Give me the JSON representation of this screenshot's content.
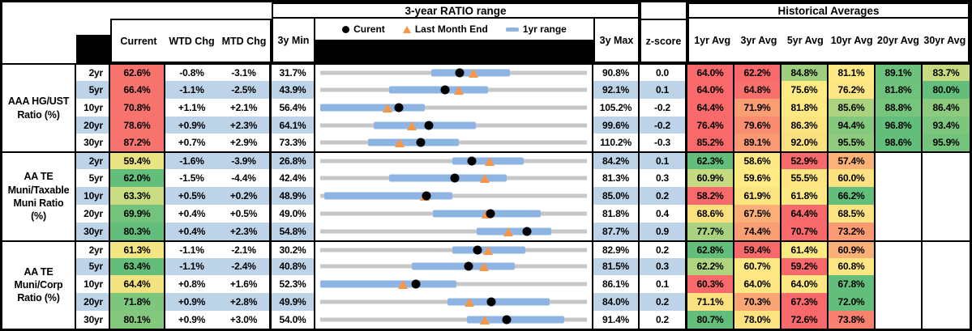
{
  "chart_data": {
    "type": "table",
    "title": "3-year RATIO range",
    "titles": {
      "range": "3-year RATIO range",
      "hist": "Historical Averages"
    },
    "legend": {
      "current": "Curent",
      "last_month": "Last Month End",
      "range_1yr": "1yr range"
    },
    "columns": {
      "current": "Current",
      "wtd": "WTD Chg",
      "mtd": "MTD Chg",
      "min": "3y Min",
      "max": "3y Max",
      "z": "z-score",
      "avgs": [
        "1yr Avg",
        "3yr Avg",
        "5yr Avg",
        "10yr Avg",
        "20yr Avg",
        "30yr Avg"
      ]
    },
    "colors": {
      "stripe": "#BDD3E8",
      "bar_1yr": "#8DB4E2",
      "track": "#C7C7C7",
      "dot": "#000000",
      "triangle": "#F79646",
      "scale_red": "#F8696B",
      "scale_yellow": "#FFEB84",
      "scale_green": "#63BE7B"
    },
    "groups": [
      {
        "label_lines": [
          "AAA HG/UST",
          "Ratio (%)"
        ],
        "rows": [
          {
            "tenor": "2yr",
            "current": {
              "text": "62.6%",
              "color": "#F7736D"
            },
            "wtd": "-0.8%",
            "mtd": "-3.1%",
            "min": "31.7%",
            "max": "90.8%",
            "z": "0.0",
            "bullet": {
              "lo": 31.7,
              "hi": 90.8,
              "bar_lo": 56.3,
              "bar_hi": 73.7,
              "dot": 62.6,
              "tri": 65.7
            },
            "avgs": [
              {
                "text": "64.0%",
                "color": "#F8696B"
              },
              {
                "text": "62.2%",
                "color": "#F8696B"
              },
              {
                "text": "84.8%",
                "color": "#9FCF7E"
              },
              {
                "text": "81.1%",
                "color": "#FFE984"
              },
              {
                "text": "89.1%",
                "color": "#6CC17C"
              },
              {
                "text": "83.7%",
                "color": "#C6DB81"
              }
            ]
          },
          {
            "tenor": "5yr",
            "current": {
              "text": "66.4%",
              "color": "#F7736D"
            },
            "wtd": "-1.1%",
            "mtd": "-2.5%",
            "min": "43.9%",
            "max": "92.1%",
            "z": "0.1",
            "bullet": {
              "lo": 43.9,
              "hi": 92.1,
              "bar_lo": 56.3,
              "bar_hi": 74.3,
              "dot": 66.4,
              "tri": 68.9
            },
            "avgs": [
              {
                "text": "64.0%",
                "color": "#F8696B"
              },
              {
                "text": "64.8%",
                "color": "#F8706C"
              },
              {
                "text": "75.6%",
                "color": "#FFEB84"
              },
              {
                "text": "76.2%",
                "color": "#FDE683"
              },
              {
                "text": "81.8%",
                "color": "#6FC27C"
              },
              {
                "text": "80.0%",
                "color": "#63BE7B"
              }
            ]
          },
          {
            "tenor": "10yr",
            "current": {
              "text": "70.8%",
              "color": "#F7736D"
            },
            "wtd": "+1.1%",
            "mtd": "+2.1%",
            "min": "56.4%",
            "max": "105.2%",
            "z": "-0.2",
            "bullet": {
              "lo": 56.4,
              "hi": 105.2,
              "bar_lo": 56.4,
              "bar_hi": 75.5,
              "dot": 70.8,
              "tri": 68.7
            },
            "avgs": [
              {
                "text": "64.4%",
                "color": "#F8696B"
              },
              {
                "text": "71.9%",
                "color": "#FA9E73"
              },
              {
                "text": "81.8%",
                "color": "#FEE982"
              },
              {
                "text": "85.6%",
                "color": "#ABD37F"
              },
              {
                "text": "88.8%",
                "color": "#77C47D"
              },
              {
                "text": "86.4%",
                "color": "#8CCA7E"
              }
            ]
          },
          {
            "tenor": "20yr",
            "current": {
              "text": "78.6%",
              "color": "#F7736D"
            },
            "wtd": "+0.9%",
            "mtd": "+2.3%",
            "min": "64.1%",
            "max": "99.6%",
            "z": "-0.2",
            "bullet": {
              "lo": 64.1,
              "hi": 99.6,
              "bar_lo": 71.2,
              "bar_hi": 84.8,
              "dot": 78.6,
              "tri": 76.3
            },
            "avgs": [
              {
                "text": "76.4%",
                "color": "#F8696B"
              },
              {
                "text": "79.6%",
                "color": "#FA8D70"
              },
              {
                "text": "86.3%",
                "color": "#FBE480"
              },
              {
                "text": "94.4%",
                "color": "#84C87D"
              },
              {
                "text": "96.8%",
                "color": "#63BE7B"
              },
              {
                "text": "93.4%",
                "color": "#7CC67D"
              }
            ]
          },
          {
            "tenor": "30yr",
            "current": {
              "text": "87.2%",
              "color": "#F7736D"
            },
            "wtd": "+0.7%",
            "mtd": "+2.9%",
            "min": "73.3%",
            "max": "110.2%",
            "z": "-0.3",
            "bullet": {
              "lo": 73.3,
              "hi": 110.2,
              "bar_lo": 79.9,
              "bar_hi": 92.5,
              "dot": 87.2,
              "tri": 84.3
            },
            "avgs": [
              {
                "text": "85.2%",
                "color": "#F8696B"
              },
              {
                "text": "89.1%",
                "color": "#FA9A72"
              },
              {
                "text": "92.0%",
                "color": "#FAE07F"
              },
              {
                "text": "95.5%",
                "color": "#8ECB7E"
              },
              {
                "text": "98.6%",
                "color": "#63BE7B"
              },
              {
                "text": "95.9%",
                "color": "#74C37D"
              }
            ]
          }
        ]
      },
      {
        "label_lines": [
          "AA TE",
          "Muni/Taxable",
          "Muni Ratio",
          "(%)"
        ],
        "rows": [
          {
            "tenor": "2yr",
            "current": {
              "text": "59.4%",
              "color": "#E9E383"
            },
            "wtd": "-1.6%",
            "mtd": "-3.9%",
            "min": "26.8%",
            "max": "84.2%",
            "z": "0.1",
            "bullet": {
              "lo": 26.8,
              "hi": 84.2,
              "bar_lo": 55.2,
              "bar_hi": 70.6,
              "dot": 59.4,
              "tri": 63.3
            },
            "avgs": [
              {
                "text": "62.3%",
                "color": "#63BE7B"
              },
              {
                "text": "58.6%",
                "color": "#FFE984"
              },
              {
                "text": "52.9%",
                "color": "#F8696B"
              },
              {
                "text": "57.4%",
                "color": "#FBB277"
              },
              {
                "text": "",
                "color": ""
              },
              {
                "text": "",
                "color": ""
              }
            ]
          },
          {
            "tenor": "5yr",
            "current": {
              "text": "62.0%",
              "color": "#63BE7B"
            },
            "wtd": "-1.5%",
            "mtd": "-4.4%",
            "min": "42.4%",
            "max": "81.3%",
            "z": "0.3",
            "bullet": {
              "lo": 42.4,
              "hi": 81.3,
              "bar_lo": 52.5,
              "bar_hi": 69.6,
              "dot": 62.0,
              "tri": 66.4
            },
            "avgs": [
              {
                "text": "60.9%",
                "color": "#C6DB81"
              },
              {
                "text": "59.6%",
                "color": "#FFEB84"
              },
              {
                "text": "55.5%",
                "color": "#FDE582"
              },
              {
                "text": "60.0%",
                "color": "#FCE180"
              },
              {
                "text": "",
                "color": ""
              },
              {
                "text": "",
                "color": ""
              }
            ]
          },
          {
            "tenor": "10yr",
            "current": {
              "text": "63.3%",
              "color": "#C9DC81"
            },
            "wtd": "+0.5%",
            "mtd": "+0.2%",
            "min": "48.9%",
            "max": "85.0%",
            "z": "0.2",
            "bullet": {
              "lo": 48.9,
              "hi": 85.0,
              "bar_lo": 49.4,
              "bar_hi": 66.8,
              "dot": 63.3,
              "tri": 63.1
            },
            "avgs": [
              {
                "text": "58.2%",
                "color": "#F8696B"
              },
              {
                "text": "61.9%",
                "color": "#FCE481"
              },
              {
                "text": "61.8%",
                "color": "#FEE883"
              },
              {
                "text": "66.2%",
                "color": "#63BE7B"
              },
              {
                "text": "",
                "color": ""
              },
              {
                "text": "",
                "color": ""
              }
            ]
          },
          {
            "tenor": "20yr",
            "current": {
              "text": "69.9%",
              "color": "#74C37D"
            },
            "wtd": "+0.4%",
            "mtd": "+0.5%",
            "min": "49.0%",
            "max": "81.8%",
            "z": "0.4",
            "bullet": {
              "lo": 49.0,
              "hi": 81.8,
              "bar_lo": 62.9,
              "bar_hi": 76.1,
              "dot": 69.9,
              "tri": 69.4
            },
            "avgs": [
              {
                "text": "68.6%",
                "color": "#FBE07E"
              },
              {
                "text": "67.5%",
                "color": "#FBAE76"
              },
              {
                "text": "64.4%",
                "color": "#F8696B"
              },
              {
                "text": "68.5%",
                "color": "#FDE381"
              },
              {
                "text": "",
                "color": ""
              },
              {
                "text": "",
                "color": ""
              }
            ]
          },
          {
            "tenor": "30yr",
            "current": {
              "text": "80.3%",
              "color": "#63BE7B"
            },
            "wtd": "+0.4%",
            "mtd": "+2.3%",
            "min": "54.8%",
            "max": "87.7%",
            "z": "0.9",
            "bullet": {
              "lo": 54.8,
              "hi": 87.7,
              "bar_lo": 74.1,
              "bar_hi": 83.3,
              "dot": 80.3,
              "tri": 78.0
            },
            "avgs": [
              {
                "text": "77.7%",
                "color": "#A8D27F"
              },
              {
                "text": "74.4%",
                "color": "#FA9E73"
              },
              {
                "text": "70.7%",
                "color": "#F8696B"
              },
              {
                "text": "73.2%",
                "color": "#FA9A72"
              },
              {
                "text": "",
                "color": ""
              },
              {
                "text": "",
                "color": ""
              }
            ]
          }
        ]
      },
      {
        "label_lines": [
          "AA TE",
          "Muni/Corp",
          "Ratio (%)"
        ],
        "rows": [
          {
            "tenor": "2yr",
            "current": {
              "text": "61.3%",
              "color": "#F5E482"
            },
            "wtd": "-1.1%",
            "mtd": "-2.1%",
            "min": "30.2%",
            "max": "82.9%",
            "z": "0.2",
            "bullet": {
              "lo": 30.2,
              "hi": 82.9,
              "bar_lo": 56.3,
              "bar_hi": 70.7,
              "dot": 61.3,
              "tri": 63.4
            },
            "avgs": [
              {
                "text": "62.8%",
                "color": "#63BE7B"
              },
              {
                "text": "59.4%",
                "color": "#F8696B"
              },
              {
                "text": "61.4%",
                "color": "#FFEB84"
              },
              {
                "text": "60.9%",
                "color": "#FBB077"
              },
              {
                "text": "",
                "color": ""
              },
              {
                "text": "",
                "color": ""
              }
            ]
          },
          {
            "tenor": "5yr",
            "current": {
              "text": "63.4%",
              "color": "#63BE7B"
            },
            "wtd": "-1.1%",
            "mtd": "-2.4%",
            "min": "40.8%",
            "max": "81.5%",
            "z": "0.3",
            "bullet": {
              "lo": 40.8,
              "hi": 81.5,
              "bar_lo": 54.8,
              "bar_hi": 70.5,
              "dot": 63.4,
              "tri": 65.8
            },
            "avgs": [
              {
                "text": "62.2%",
                "color": "#AFD47F"
              },
              {
                "text": "60.7%",
                "color": "#FEE883"
              },
              {
                "text": "59.2%",
                "color": "#F8696B"
              },
              {
                "text": "60.8%",
                "color": "#FEE782"
              },
              {
                "text": "",
                "color": ""
              },
              {
                "text": "",
                "color": ""
              }
            ]
          },
          {
            "tenor": "10yr",
            "current": {
              "text": "64.4%",
              "color": "#F3E380"
            },
            "wtd": "+0.8%",
            "mtd": "+1.6%",
            "min": "52.3%",
            "max": "86.1%",
            "z": "0.1",
            "bullet": {
              "lo": 52.3,
              "hi": 86.1,
              "bar_lo": 52.3,
              "bar_hi": 69.6,
              "dot": 64.4,
              "tri": 62.8
            },
            "avgs": [
              {
                "text": "60.3%",
                "color": "#F8696B"
              },
              {
                "text": "64.0%",
                "color": "#FDE782"
              },
              {
                "text": "64.0%",
                "color": "#FDE782"
              },
              {
                "text": "67.8%",
                "color": "#63BE7B"
              },
              {
                "text": "",
                "color": ""
              },
              {
                "text": "",
                "color": ""
              }
            ]
          },
          {
            "tenor": "20yr",
            "current": {
              "text": "71.8%",
              "color": "#7DC67D"
            },
            "wtd": "+0.9%",
            "mtd": "+2.8%",
            "min": "49.9%",
            "max": "84.0%",
            "z": "0.2",
            "bullet": {
              "lo": 49.9,
              "hi": 84.0,
              "bar_lo": 66.2,
              "bar_hi": 79.2,
              "dot": 71.8,
              "tri": 69.0
            },
            "avgs": [
              {
                "text": "71.1%",
                "color": "#FBE17F"
              },
              {
                "text": "70.3%",
                "color": "#FAA674"
              },
              {
                "text": "67.3%",
                "color": "#F8696B"
              },
              {
                "text": "72.0%",
                "color": "#63BE7B"
              },
              {
                "text": "",
                "color": ""
              },
              {
                "text": "",
                "color": ""
              }
            ]
          },
          {
            "tenor": "30yr",
            "current": {
              "text": "80.1%",
              "color": "#84C87D"
            },
            "wtd": "+0.9%",
            "mtd": "+3.0%",
            "min": "54.0%",
            "max": "91.4%",
            "z": "0.2",
            "bullet": {
              "lo": 54.0,
              "hi": 91.4,
              "bar_lo": 74.6,
              "bar_hi": 88.2,
              "dot": 80.1,
              "tri": 77.1
            },
            "avgs": [
              {
                "text": "80.7%",
                "color": "#63BE7B"
              },
              {
                "text": "78.0%",
                "color": "#FCE380"
              },
              {
                "text": "72.6%",
                "color": "#F8696B"
              },
              {
                "text": "73.8%",
                "color": "#F8806F"
              },
              {
                "text": "",
                "color": ""
              },
              {
                "text": "",
                "color": ""
              }
            ]
          }
        ]
      }
    ]
  }
}
